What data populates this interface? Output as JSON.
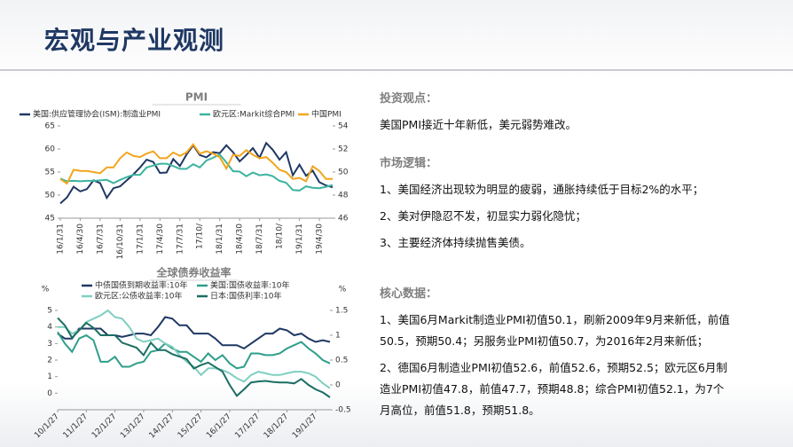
{
  "header": {
    "title": "宏观与产业观测"
  },
  "chart_data": [
    {
      "type": "line",
      "title": "PMI",
      "categories": [
        "16/1/31",
        null,
        null,
        "16/4/30",
        null,
        null,
        "16/7/31",
        null,
        null,
        "16/10/31",
        null,
        null,
        "17/1/31",
        null,
        null,
        "17/4/30",
        null,
        null,
        "17/7/31",
        null,
        null,
        "17/10/",
        null,
        null,
        "18/1/31",
        null,
        null,
        "18/4/30",
        null,
        null,
        "18/7/31",
        null,
        null,
        "18/10/",
        null,
        null,
        "19/1/31",
        null,
        null,
        "19/4/30",
        null,
        null
      ],
      "series": [
        {
          "name": "美国:供应管理协会(ISM):制造业PMI",
          "color": "#1f3864",
          "values": [
            48.2,
            49.5,
            51.8,
            50.8,
            51.3,
            53.2,
            52.6,
            49.4,
            51.5,
            51.9,
            53.2,
            54.5,
            56.0,
            57.7,
            57.2,
            54.8,
            54.9,
            57.8,
            56.3,
            58.8,
            60.8,
            58.7,
            58.2,
            59.3,
            59.1,
            60.8,
            59.3,
            57.3,
            58.7,
            60.2,
            58.1,
            61.3,
            59.8,
            57.7,
            59.3,
            54.3,
            56.6,
            54.2,
            55.3,
            52.8,
            52.1,
            51.7
          ]
        },
        {
          "name": "欧元区:Markit综合PMI",
          "color": "#3cb4a0",
          "values": [
            53.6,
            53.0,
            53.1,
            53.0,
            53.1,
            53.1,
            53.2,
            53.3,
            52.6,
            53.3,
            53.9,
            54.4,
            54.4,
            56.0,
            56.4,
            56.8,
            56.8,
            56.3,
            55.7,
            55.7,
            56.7,
            56.0,
            57.5,
            58.1,
            58.8,
            57.1,
            55.2,
            55.1,
            54.1,
            54.9,
            54.3,
            54.5,
            54.1,
            53.1,
            52.7,
            51.1,
            51.0,
            51.9,
            51.6,
            51.5,
            51.8,
            52.2
          ]
        },
        {
          "name": "中国PMI",
          "color": "#f2a51c",
          "axis": "y2",
          "values": [
            49.4,
            49.0,
            50.2,
            50.1,
            50.1,
            50.0,
            49.9,
            50.4,
            50.4,
            51.2,
            51.7,
            51.4,
            51.3,
            51.6,
            51.8,
            51.2,
            51.2,
            51.7,
            51.4,
            51.7,
            52.4,
            51.6,
            51.8,
            51.6,
            51.3,
            50.3,
            51.5,
            51.4,
            51.9,
            51.5,
            51.2,
            51.3,
            50.8,
            50.2,
            50.0,
            49.4,
            49.5,
            49.2,
            50.5,
            50.1,
            49.4,
            49.4
          ]
        }
      ],
      "ylim": [
        45,
        65
      ],
      "yticks": [
        45,
        50,
        55,
        60,
        65
      ],
      "y2lim": [
        46,
        54
      ],
      "y2ticks": [
        46,
        48,
        50,
        52,
        54
      ],
      "grid": false
    },
    {
      "type": "line",
      "title": "全球债券收益率",
      "ylabel": "%",
      "y2label": "%",
      "categories": [
        "10/1/27",
        null,
        null,
        null,
        "11/1/27",
        null,
        null,
        null,
        "12/1/27",
        null,
        null,
        null,
        "13/1/27",
        null,
        null,
        null,
        "14/1/27",
        null,
        null,
        null,
        "15/1/27",
        null,
        null,
        null,
        "16/1/27",
        null,
        null,
        null,
        "17/1/27",
        null,
        null,
        null,
        "18/1/27",
        null,
        null,
        null,
        "19/1/27",
        null,
        null
      ],
      "series": [
        {
          "name": "中债国债到期收益率:10年",
          "color": "#1f3864",
          "values": [
            3.6,
            3.3,
            3.3,
            3.9,
            3.9,
            3.9,
            3.9,
            3.5,
            3.5,
            3.4,
            3.5,
            3.6,
            3.6,
            3.5,
            4.0,
            4.6,
            4.5,
            4.1,
            4.1,
            3.6,
            3.6,
            3.6,
            3.3,
            2.9,
            2.9,
            2.9,
            2.7,
            3.0,
            3.3,
            3.6,
            3.6,
            3.9,
            3.8,
            3.5,
            3.6,
            3.3,
            3.1,
            3.2,
            3.1
          ]
        },
        {
          "name": "美国:国债收益率:10年",
          "color": "#2e9e8a",
          "values": [
            3.7,
            3.0,
            2.5,
            3.3,
            3.5,
            3.2,
            1.9,
            1.9,
            2.2,
            1.6,
            1.6,
            1.8,
            1.9,
            2.5,
            2.6,
            3.0,
            2.7,
            2.5,
            2.5,
            2.2,
            1.9,
            2.4,
            2.0,
            2.3,
            1.8,
            1.5,
            1.6,
            2.4,
            2.4,
            2.3,
            2.3,
            2.4,
            2.7,
            2.9,
            3.1,
            2.7,
            2.4,
            2.0,
            1.8
          ]
        },
        {
          "name": "欧元区:公债收益率:10年",
          "color": "#7fcfc0",
          "values": [
            4.0,
            4.0,
            3.6,
            3.8,
            4.3,
            4.5,
            4.7,
            5.0,
            4.6,
            4.5,
            4.0,
            3.3,
            3.1,
            3.2,
            3.3,
            3.0,
            2.8,
            2.3,
            1.9,
            1.6,
            1.1,
            1.5,
            1.5,
            1.4,
            1.2,
            0.9,
            0.7,
            1.1,
            1.3,
            1.2,
            1.1,
            1.1,
            1.2,
            1.3,
            1.3,
            1.2,
            1.0,
            0.6,
            0.3
          ]
        },
        {
          "name": "日本:国债利率:10年",
          "color": "#1b6e63",
          "axis": "y2",
          "values": [
            1.35,
            1.2,
            0.95,
            1.1,
            1.25,
            1.15,
            1.0,
            1.0,
            1.0,
            0.85,
            0.8,
            0.75,
            0.6,
            0.85,
            0.7,
            0.7,
            0.62,
            0.57,
            0.52,
            0.33,
            0.4,
            0.45,
            0.36,
            0.27,
            0.0,
            -0.22,
            -0.09,
            0.05,
            0.07,
            0.08,
            0.06,
            0.05,
            0.05,
            0.03,
            0.12,
            0.0,
            -0.09,
            -0.15,
            -0.25
          ]
        }
      ],
      "ylim": [
        -1,
        5
      ],
      "yticks": [
        0,
        1,
        2,
        3,
        4,
        5
      ],
      "y2lim": [
        -0.5,
        1.5
      ],
      "y2ticks": [
        -0.5,
        0,
        0.5,
        1,
        1.5
      ],
      "grid": false
    }
  ],
  "sections": [
    {
      "heading": "投资观点：",
      "paragraphs": [
        "美国PMI接近十年新低，美元弱势难改。"
      ]
    },
    {
      "heading": "市场逻辑：",
      "paragraphs": [
        "1、美国经济出现较为明显的疲弱，通胀持续低于目标2%的水平；",
        "2、美对伊隐忍不发，初显实力弱化隐忧；",
        "3、主要经济体持续抛售美债。"
      ]
    },
    {
      "heading": "核心数据：",
      "paragraphs": [
        "1、美国6月Markit制造业PMI初值50.1，刷新2009年9月来新低，前值50.5，预期50.4；另服务业PMI初值50.7，为2016年2月来新低；",
        "2、德国6月制造业PMI初值52.6，前值52.6，预期52.5；欧元区6月制造业PMI初值47.8，前值47.7，预期48.8；综合PMI初值52.1，为7个月高位，前值51.8，预期51.8。"
      ]
    }
  ]
}
